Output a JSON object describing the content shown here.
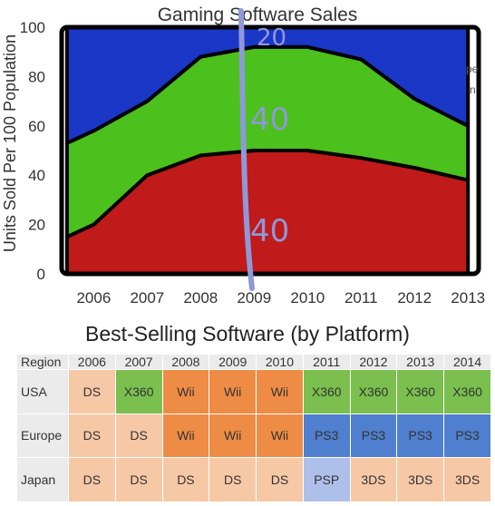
{
  "colors": {
    "background": "#ffffff",
    "outline": "#000000",
    "bottom_series": "#c01a1a",
    "middle_series": "#4cc01c",
    "top_series": "#1a37c8",
    "pen_annotation": "#8f98d8"
  },
  "chart_data": {
    "type": "area",
    "stacked": true,
    "title": "Gaming Software Sales",
    "xlabel": "",
    "ylabel": "Units Sold Per 100 Population",
    "x": [
      2005.5,
      2006,
      2007,
      2008,
      2009,
      2010,
      2011,
      2012,
      2013
    ],
    "xticks": [
      2006,
      2007,
      2008,
      2009,
      2010,
      2011,
      2012,
      2013
    ],
    "xlim": [
      2005.4,
      2013.2
    ],
    "ylim": [
      0,
      100
    ],
    "yticks": [
      0,
      20,
      40,
      60,
      80,
      100
    ],
    "grid": false,
    "series": [
      {
        "values": [
          15,
          20,
          40,
          48,
          50,
          50,
          47,
          43,
          38
        ],
        "color": "#c01a1a"
      },
      {
        "values": [
          38,
          38,
          30,
          40,
          42,
          42,
          40,
          28,
          22
        ],
        "color": "#4cc01c"
      },
      {
        "values": [
          47,
          42,
          30,
          12,
          8,
          8,
          13,
          29,
          40
        ],
        "color": "#1a37c8"
      }
    ],
    "annotations": {
      "handwritten_labels": [
        "20",
        "40",
        "40"
      ],
      "legend_fragments": [
        "pe",
        "n"
      ]
    }
  },
  "table": {
    "title": "Best-Selling Software (by Platform)",
    "header_label": "Region",
    "years": [
      "2006",
      "2007",
      "2008",
      "2009",
      "2010",
      "2011",
      "2012",
      "2013",
      "2014"
    ],
    "rows": [
      {
        "region": "USA",
        "cells": [
          "DS",
          "X360",
          "Wii",
          "Wii",
          "Wii",
          "X360",
          "X360",
          "X360",
          "X360"
        ]
      },
      {
        "region": "Europe",
        "cells": [
          "DS",
          "DS",
          "Wii",
          "Wii",
          "Wii",
          "PS3",
          "PS3",
          "PS3",
          "PS3"
        ]
      },
      {
        "region": "Japan",
        "cells": [
          "DS",
          "DS",
          "DS",
          "DS",
          "DS",
          "PSP",
          "3DS",
          "3DS",
          "3DS"
        ]
      }
    ],
    "platform_colors": {
      "DS": "#f7c8a6",
      "3DS": "#f7c8a6",
      "X360": "#7bbf4e",
      "Wii": "#ee8c45",
      "PS3": "#4f7fce",
      "PSP": "#aebfea"
    }
  }
}
